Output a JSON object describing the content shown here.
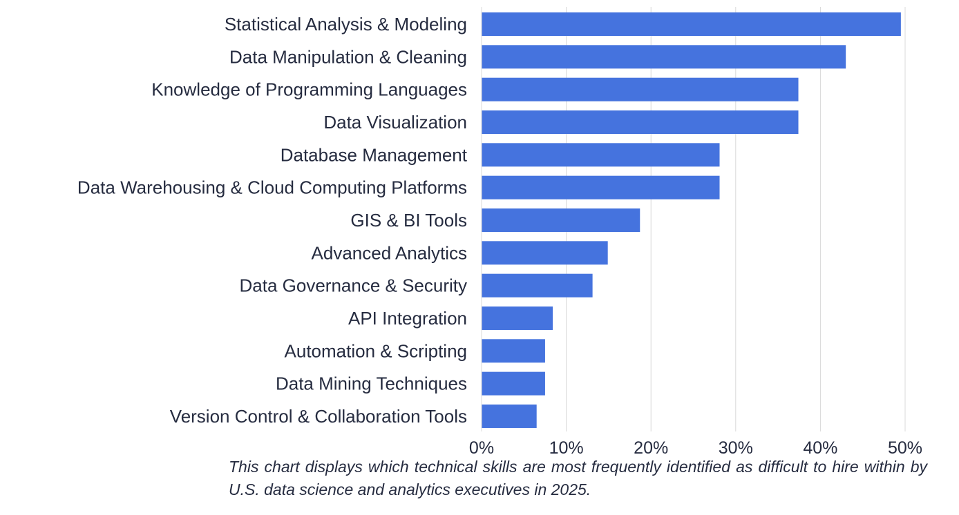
{
  "chart_data": {
    "type": "bar",
    "orientation": "horizontal",
    "categories": [
      "Statistical Analysis & Modeling",
      "Data Manipulation & Cleaning",
      "Knowledge of Programming Languages",
      "Data Visualization",
      "Database Management",
      "Data Warehousing & Cloud Computing Platforms",
      "GIS & BI Tools",
      "Advanced Analytics",
      "Data Governance & Security",
      "API Integration",
      "Automation & Scripting",
      "Data Mining Techniques",
      "Version Control & Collaboration Tools"
    ],
    "values": [
      49.5,
      43.0,
      37.4,
      37.4,
      28.1,
      28.1,
      18.7,
      14.9,
      13.1,
      8.4,
      7.5,
      7.5,
      6.5
    ],
    "xlim": [
      0,
      50
    ],
    "xticks": [
      "0%",
      "10%",
      "20%",
      "30%",
      "40%",
      "50%"
    ],
    "grid": "vertical",
    "bar_color": "#4573DE",
    "grid_color": "#D9D9D9",
    "text_color": "#262C40"
  },
  "caption": "This chart displays which technical skills are most frequently identified as difficult to hire within by U.S. data science and analytics executives in 2025."
}
